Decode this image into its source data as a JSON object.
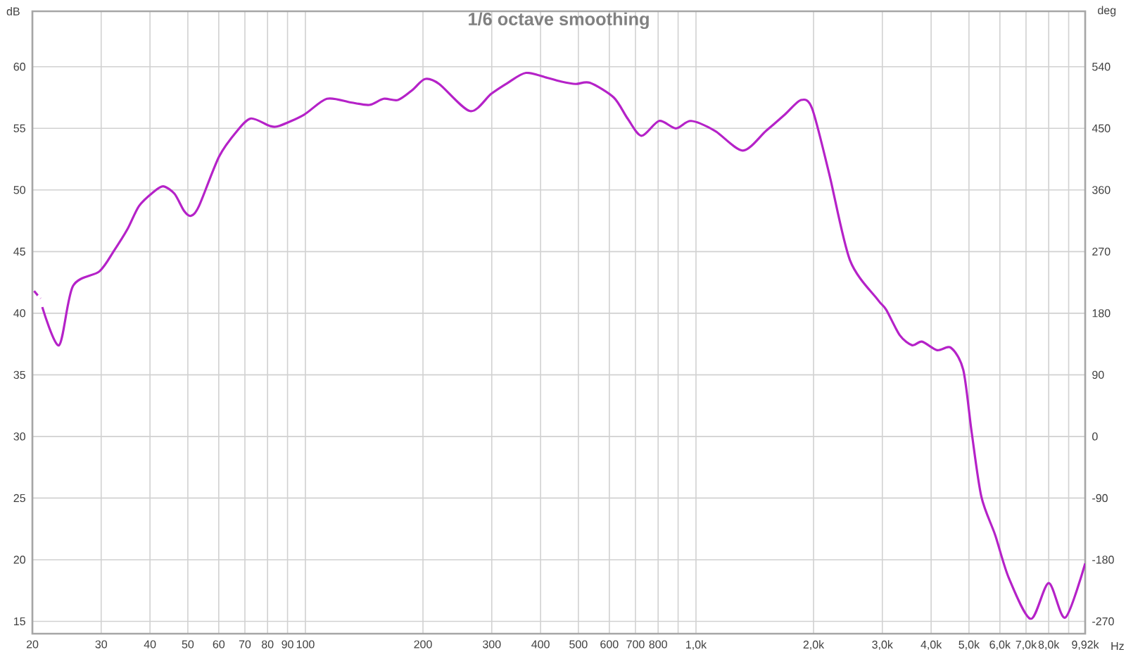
{
  "chart_data": {
    "type": "line",
    "title": "1/6 octave smoothing",
    "xlabel": "Hz",
    "ylabel": "dB",
    "y2label": "deg",
    "log": "x",
    "grid": true,
    "xlim": [
      20,
      9920
    ],
    "ylim": [
      14,
      64.5
    ],
    "y2lim": [
      -288,
      621
    ],
    "xticks": [
      20,
      30,
      40,
      50,
      60,
      70,
      80,
      90,
      100,
      200,
      300,
      400,
      500,
      600,
      700,
      800,
      {
        "value": 900,
        "label": null
      },
      {
        "value": 1000,
        "label": "1,0k"
      },
      {
        "value": 2000,
        "label": "2,0k"
      },
      {
        "value": 3000,
        "label": "3,0k"
      },
      {
        "value": 4000,
        "label": "4,0k"
      },
      {
        "value": 5000,
        "label": "5,0k"
      },
      {
        "value": 6000,
        "label": "6,0k"
      },
      {
        "value": 7000,
        "label": "7,0k"
      },
      {
        "value": 8000,
        "label": "8,0k"
      },
      {
        "value": 9000,
        "label": null
      },
      {
        "value": 9920,
        "label": "9,92k"
      }
    ],
    "yticks": [
      15,
      20,
      25,
      30,
      35,
      40,
      45,
      50,
      55,
      60
    ],
    "y2ticks": [
      -270,
      -180,
      -90,
      0,
      90,
      180,
      270,
      360,
      450,
      540
    ],
    "series": [
      {
        "color": "#b522c8",
        "line_style": "solid",
        "x": [
          21.2,
          23.4,
          25.4,
          29.7,
          32.4,
          35.0,
          37.5,
          40.7,
          43.2,
          46.2,
          48.9,
          50.9,
          53.4,
          60.1,
          66.9,
          72.6,
          81.0,
          85.8,
          99.1,
          113.5,
          130.7,
          145.8,
          158.6,
          172.6,
          187.8,
          202.3,
          220,
          264,
          299,
          330,
          367,
          416,
          451,
          492,
          535,
          616,
          668,
          725,
          805,
          888,
          971,
          1118,
          1318,
          1512,
          1686,
          1858,
          1984,
          2190,
          2479,
          2920,
          3067,
          3328,
          3578,
          3788,
          4144,
          4494,
          4835,
          5082,
          5380,
          5836,
          6327,
          7198,
          8000,
          8819,
          9920
        ],
        "values": [
          40.5,
          37.4,
          42.2,
          43.4,
          45.1,
          46.8,
          48.7,
          49.8,
          50.3,
          49.7,
          48.3,
          47.9,
          48.7,
          52.7,
          54.8,
          55.8,
          55.2,
          55.2,
          56.1,
          57.4,
          57.1,
          56.9,
          57.4,
          57.3,
          58.1,
          59.0,
          58.6,
          56.4,
          57.8,
          58.7,
          59.5,
          59.1,
          58.8,
          58.6,
          58.7,
          57.5,
          55.8,
          54.4,
          55.6,
          55.0,
          55.6,
          54.8,
          53.2,
          54.8,
          56.1,
          57.3,
          56.6,
          51.4,
          44.3,
          41.1,
          40.3,
          38.2,
          37.4,
          37.7,
          37.0,
          37.2,
          35.4,
          30.3,
          25.1,
          22.0,
          18.5,
          15.2,
          18.1,
          15.3,
          19.7
        ]
      },
      {
        "color": "#b522c8",
        "line_style": "dashed",
        "x": [
          20.2,
          20.7,
          21.0
        ],
        "values": [
          41.8,
          41.4,
          41.2
        ]
      }
    ]
  }
}
